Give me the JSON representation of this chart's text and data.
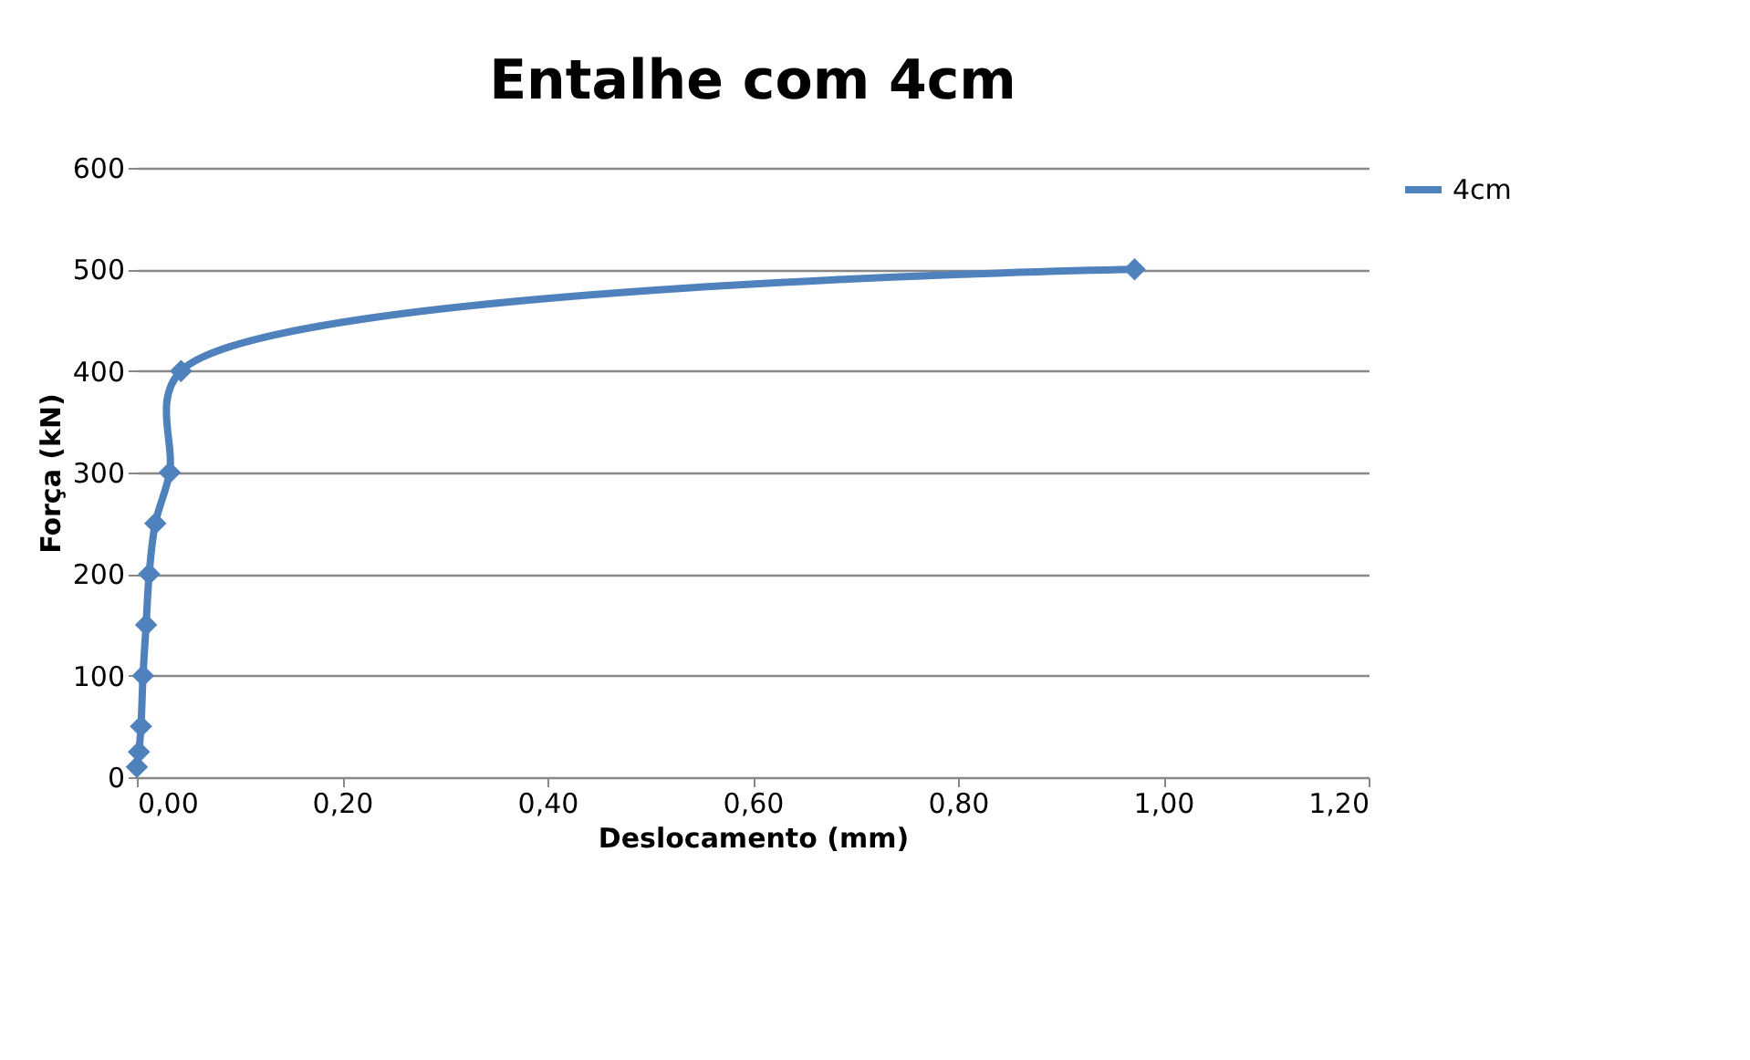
{
  "chart_data": {
    "type": "line",
    "title": "Entalhe com 4cm",
    "xlabel": "Deslocamento (mm)",
    "ylabel": "Força (kN)",
    "series": [
      {
        "name": "4cm",
        "color": "#4f81bd",
        "x": [
          0.0,
          0.002,
          0.004,
          0.006,
          0.009,
          0.012,
          0.018,
          0.032,
          0.043,
          0.972
        ],
        "values": [
          10,
          25,
          50,
          100,
          150,
          200,
          250,
          300,
          400,
          500
        ]
      }
    ],
    "xlim": [
      0,
      1.2
    ],
    "xticks": [
      {
        "value": 0,
        "label": "0,00"
      },
      {
        "value": 0.2,
        "label": "0,20"
      },
      {
        "value": 0.4,
        "label": "0,40"
      },
      {
        "value": 0.6,
        "label": "0,60"
      },
      {
        "value": 0.8,
        "label": "0,80"
      },
      {
        "value": 1.0,
        "label": "1,00"
      },
      {
        "value": 1.2,
        "label": "1,20"
      }
    ],
    "ylim": [
      0,
      600
    ],
    "yticks": [
      0,
      100,
      200,
      300,
      400,
      500,
      600
    ],
    "grid": "y",
    "legend": "right",
    "marker": "diamond",
    "line_style": "solid"
  }
}
